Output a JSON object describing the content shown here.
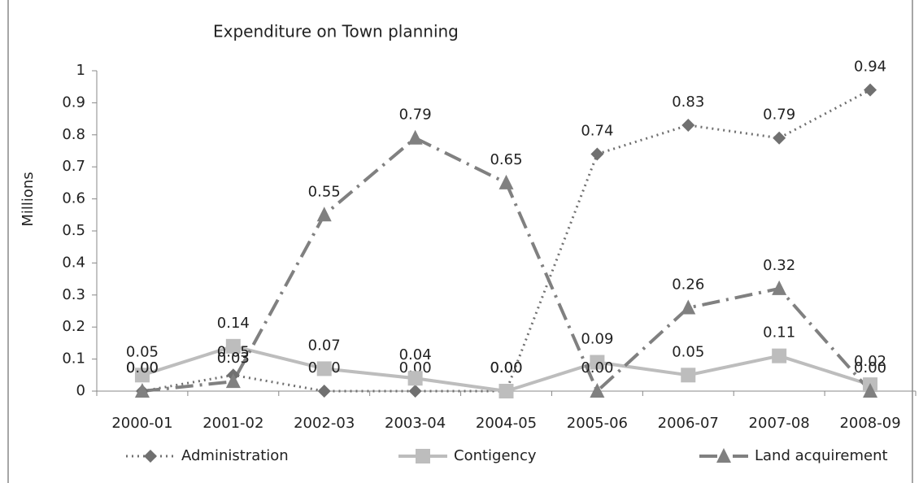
{
  "chart_data": {
    "type": "line",
    "title": "Expenditure on Town planning",
    "y_label": "Millions",
    "categories": [
      "2000-01",
      "2001-02",
      "2002-03",
      "2003-04",
      "2004-05",
      "2005-06",
      "2006-07",
      "2007-08",
      "2008-09"
    ],
    "series": [
      {
        "name": "Administration",
        "color": "#707070",
        "line_style": "dotted",
        "marker": "diamond",
        "values": [
          0,
          0.05,
          0,
          0,
          0,
          0.74,
          0.83,
          0.79,
          0.94
        ],
        "value_labels": [
          "0.00",
          "0.05",
          "0.00",
          "0.00",
          "0.00",
          "0.74",
          "0.83",
          "0.79",
          "0.94"
        ]
      },
      {
        "name": "Contigency",
        "color": "#bdbdbd",
        "line_style": "solid",
        "marker": "square",
        "values": [
          0.05,
          0.14,
          0.07,
          0.04,
          0,
          0.09,
          0.05,
          0.11,
          0.02
        ],
        "value_labels": [
          "0.05",
          "0.14",
          "0.07",
          "0.04",
          "0.00",
          "0.09",
          "0.05",
          "0.11",
          "0.02"
        ]
      },
      {
        "name": "Land acquirement",
        "color": "#808080",
        "line_style": "dashdot",
        "marker": "triangle",
        "values": [
          0,
          0.03,
          0.55,
          0.79,
          0.65,
          0,
          0.26,
          0.32,
          0
        ],
        "value_labels": [
          "0.00",
          "0.03",
          "0.55",
          "0.79",
          "0.65",
          "0.00",
          "0.26",
          "0.32",
          "0.00"
        ]
      }
    ],
    "ylim": [
      0,
      1
    ],
    "yticks": [
      0,
      0.1,
      0.2,
      0.3,
      0.4,
      0.5,
      0.6,
      0.7,
      0.8,
      0.9,
      1
    ],
    "legend": "bottom"
  }
}
